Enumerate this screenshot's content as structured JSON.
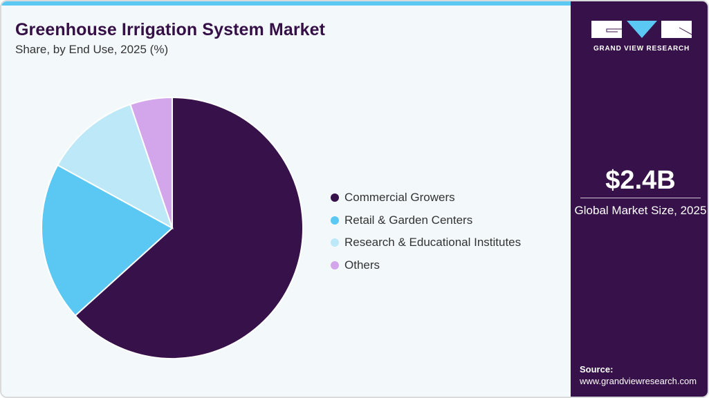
{
  "header": {
    "title": "Greenhouse Irrigation System Market",
    "subtitle": "Share, by End Use, 2025 (%)"
  },
  "chart_data": {
    "type": "pie",
    "title": "Greenhouse Irrigation System Market",
    "subtitle": "Share, by End Use, 2025 (%)",
    "categories": [
      "Commercial Growers",
      "Retail & Garden Centers",
      "Research & Educational Institutes",
      "Others"
    ],
    "values": [
      63.3,
      19.7,
      11.8,
      5.2
    ],
    "colors": [
      "#37114a",
      "#5bc8f4",
      "#bde8f8",
      "#d3a6ec"
    ],
    "start_angle": "12 o'clock, clockwise",
    "legend_position": "right"
  },
  "legend": {
    "items": [
      {
        "label": "Commercial Growers",
        "color": "#37114a"
      },
      {
        "label": "Retail & Garden Centers",
        "color": "#5bc8f4"
      },
      {
        "label": "Research & Educational Institutes",
        "color": "#bde8f8"
      },
      {
        "label": "Others",
        "color": "#d3a6ec"
      }
    ]
  },
  "sidebar": {
    "brand": "GRAND VIEW RESEARCH",
    "market_size": "$2.4B",
    "market_size_label": "Global Market Size, 2025",
    "source_label": "Source:",
    "source_url": "www.grandviewresearch.com"
  },
  "colors": {
    "accent": "#5bc8f4",
    "brand_purple": "#37114a",
    "background": "#f3f8fb"
  }
}
